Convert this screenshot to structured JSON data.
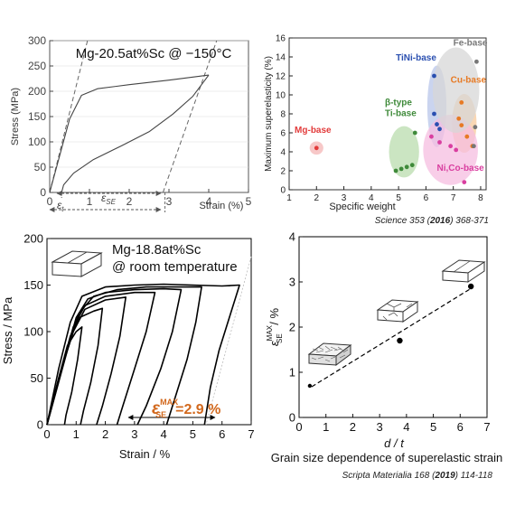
{
  "chart_data": [
    {
      "type": "line",
      "annotation": "Mg-20.5at%Sc @ −150°C",
      "xlabel": "Strain (%)",
      "ylabel": "Stress (MPa)",
      "xlim": [
        0,
        5
      ],
      "ylim": [
        0,
        300
      ],
      "x_ticks": [
        "0",
        "1",
        "2",
        "3",
        "4",
        "5"
      ],
      "y_ticks": [
        "0",
        "50",
        "100",
        "150",
        "200",
        "250",
        "300"
      ],
      "strain_labels": [
        "ε",
        "ε"
      ],
      "strain_label_subscripts": [
        "SE",
        "t"
      ],
      "series": [
        {
          "values": [
            [
              0,
              0
            ],
            [
              0.5,
              145
            ],
            [
              0.8,
              192
            ],
            [
              1.2,
              205
            ],
            [
              2,
              213
            ],
            [
              3,
              222
            ],
            [
              4,
              232
            ]
          ]
        },
        {
          "values": [
            [
              4,
              232
            ],
            [
              3.6,
              190
            ],
            [
              3.1,
              155
            ],
            [
              2.5,
              120
            ],
            [
              1.8,
              92
            ],
            [
              1.1,
              65
            ],
            [
              0.6,
              38
            ],
            [
              0.35,
              15
            ],
            [
              0.3,
              0
            ]
          ]
        }
      ]
    },
    {
      "type": "scatter",
      "xlabel": "Specific weight",
      "ylabel": "Maximum superelasticity (%)",
      "xlim": [
        1,
        8.2
      ],
      "ylim": [
        0,
        16
      ],
      "x_ticks": [
        "1",
        "2",
        "3",
        "4",
        "5",
        "6",
        "7",
        "8"
      ],
      "y_ticks": [
        "0",
        "2",
        "4",
        "6",
        "8",
        "10",
        "12",
        "14",
        "16"
      ],
      "citation": {
        "journal": "Science",
        "volume": "353",
        "year": "2016",
        "pages": "368-371"
      },
      "series": [
        {
          "name": "Mg-base",
          "color": "#e23b3b",
          "points": [
            [
              2.0,
              4.4
            ]
          ]
        },
        {
          "name": "β-type",
          "name_line2": "Ti-base",
          "color": "#3f8a3a",
          "points": [
            [
              4.9,
              2.0
            ],
            [
              5.1,
              2.2
            ],
            [
              5.3,
              2.4
            ],
            [
              5.5,
              2.6
            ],
            [
              5.6,
              6.0
            ]
          ]
        },
        {
          "name": "TiNi-base",
          "color": "#2a4fb0",
          "points": [
            [
              6.3,
              12.0
            ],
            [
              6.3,
              8.0
            ],
            [
              6.4,
              6.9
            ],
            [
              6.5,
              6.4
            ]
          ]
        },
        {
          "name": "Cu-base",
          "color": "#e77a24",
          "points": [
            [
              7.3,
              9.2
            ],
            [
              7.2,
              7.5
            ],
            [
              7.3,
              6.8
            ],
            [
              7.5,
              5.6
            ],
            [
              7.7,
              4.6
            ]
          ]
        },
        {
          "name": "Ni,Co-base",
          "color": "#d93fa0",
          "points": [
            [
              6.2,
              5.6
            ],
            [
              6.5,
              5.0
            ],
            [
              6.9,
              4.6
            ],
            [
              7.1,
              4.2
            ],
            [
              7.4,
              0.8
            ]
          ]
        },
        {
          "name": "Fe-base",
          "color": "#777777",
          "points": [
            [
              7.85,
              13.5
            ],
            [
              7.8,
              6.6
            ],
            [
              7.75,
              4.6
            ]
          ]
        }
      ]
    },
    {
      "type": "line",
      "annotation_line1": "Mg-18.8at%Sc",
      "annotation_line2": "@ room temperature",
      "callout": "ε",
      "callout_superscript": "MAX",
      "callout_subscript": "SE",
      "callout_value": "=2.9 %",
      "xlabel": "Strain / %",
      "ylabel": "Stress / MPa",
      "xlim": [
        0,
        7
      ],
      "ylim": [
        0,
        200
      ],
      "x_ticks": [
        "0",
        "1",
        "2",
        "3",
        "4",
        "5",
        "6",
        "7"
      ],
      "y_ticks": [
        "0",
        "50",
        "100",
        "150",
        "200"
      ],
      "series": [
        {
          "values": [
            [
              0,
              0
            ],
            [
              0.4,
              60
            ],
            [
              0.8,
              110
            ],
            [
              1.2,
              138
            ],
            [
              2,
              148
            ],
            [
              3,
              150
            ],
            [
              4,
              151
            ],
            [
              5,
              150
            ],
            [
              6,
              149
            ],
            [
              6.6,
              150
            ],
            [
              6.3,
              120
            ],
            [
              5.9,
              80
            ],
            [
              5.6,
              40
            ],
            [
              5.4,
              0
            ]
          ]
        },
        {
          "values": [
            [
              0,
              0
            ],
            [
              0.7,
              80
            ],
            [
              1.1,
              120
            ],
            [
              1.6,
              138
            ],
            [
              2.4,
              145
            ],
            [
              3.4,
              148
            ],
            [
              4.4,
              148
            ],
            [
              5.3,
              148
            ],
            [
              5.1,
              110
            ],
            [
              4.8,
              70
            ],
            [
              4.4,
              30
            ],
            [
              4.1,
              0
            ]
          ]
        },
        {
          "values": [
            [
              0,
              0
            ],
            [
              0.6,
              70
            ],
            [
              1.0,
              115
            ],
            [
              1.4,
              135
            ],
            [
              2.0,
              142
            ],
            [
              3,
              145
            ],
            [
              4,
              146
            ],
            [
              4.6,
              145
            ],
            [
              4.3,
              100
            ],
            [
              3.9,
              60
            ],
            [
              3.4,
              20
            ],
            [
              3.1,
              0
            ]
          ]
        },
        {
          "values": [
            [
              0,
              0
            ],
            [
              0.5,
              60
            ],
            [
              0.9,
              105
            ],
            [
              1.3,
              128
            ],
            [
              2,
              138
            ],
            [
              3,
              142
            ],
            [
              3.7,
              142
            ],
            [
              3.4,
              100
            ],
            [
              3.0,
              60
            ],
            [
              2.6,
              20
            ],
            [
              2.4,
              0
            ]
          ]
        },
        {
          "values": [
            [
              0,
              0
            ],
            [
              0.5,
              60
            ],
            [
              0.9,
              100
            ],
            [
              1.3,
              124
            ],
            [
              2,
              134
            ],
            [
              2.7,
              137
            ],
            [
              2.5,
              95
            ],
            [
              2.2,
              55
            ],
            [
              1.9,
              20
            ],
            [
              1.7,
              0
            ]
          ]
        },
        {
          "values": [
            [
              0,
              0
            ],
            [
              0.45,
              55
            ],
            [
              0.8,
              95
            ],
            [
              1.1,
              115
            ],
            [
              1.6,
              122
            ],
            [
              1.9,
              125
            ],
            [
              1.75,
              85
            ],
            [
              1.5,
              45
            ],
            [
              1.25,
              15
            ],
            [
              1.15,
              0
            ]
          ]
        },
        {
          "values": [
            [
              0,
              0
            ],
            [
              0.4,
              50
            ],
            [
              0.7,
              85
            ],
            [
              1.0,
              100
            ],
            [
              1.2,
              105
            ],
            [
              1.05,
              70
            ],
            [
              0.85,
              35
            ],
            [
              0.65,
              10
            ],
            [
              0.6,
              0
            ]
          ]
        }
      ]
    },
    {
      "type": "scatter",
      "xlabel": "d / t",
      "ylabel": "ε",
      "ylabel_superscript": "MAX",
      "ylabel_subscript": "SE",
      "ylabel_unit": " / %",
      "xlim": [
        0,
        7
      ],
      "ylim": [
        0,
        4
      ],
      "x_ticks": [
        "0",
        "1",
        "2",
        "3",
        "4",
        "5",
        "6",
        "7"
      ],
      "y_ticks": [
        "0",
        "1",
        "2",
        "3",
        "4"
      ],
      "caption": "Grain size dependence of superelastic strain",
      "citation": {
        "journal": "Scripta Materialia",
        "volume": "168",
        "year": "2019",
        "pages": "114-118"
      },
      "points": [
        [
          0.4,
          0.7
        ],
        [
          3.75,
          1.7
        ],
        [
          6.4,
          2.9
        ]
      ]
    }
  ]
}
